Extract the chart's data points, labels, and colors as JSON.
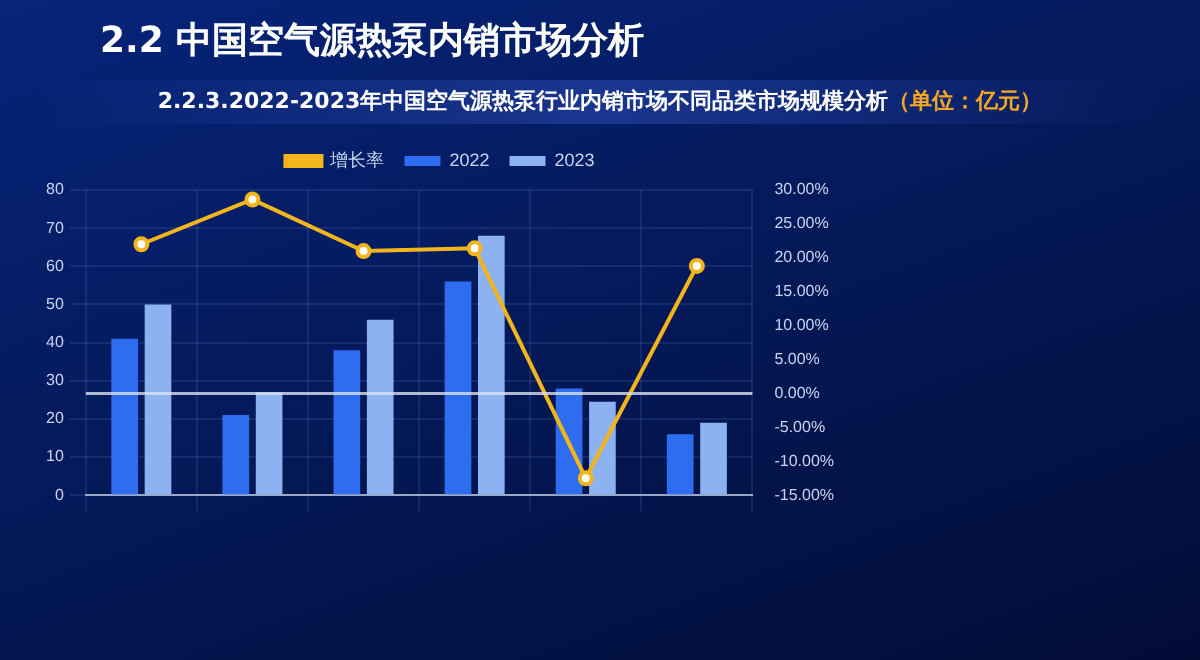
{
  "chart_data": {
    "type": "bar",
    "title": "2.2 中国空气源热泵内销市场分析",
    "subtitle": "2.2.3.2022-2023年中国空气源热泵行业内销市场不同品类市场规模分析",
    "annotations": [
      "（单位：亿元）"
    ],
    "categories": [
      null,
      null,
      null,
      null,
      null,
      null
    ],
    "series": [
      {
        "name": "2022",
        "color": "#2f6df0",
        "values": [
          41,
          21,
          38,
          56,
          28,
          16
        ]
      },
      {
        "name": "2023",
        "color": "#8cb2f2",
        "values": [
          50,
          27,
          46,
          68,
          24.5,
          19
        ]
      },
      {
        "name": "增长率",
        "type": "line",
        "axis": "y2",
        "color": "#f2b51c",
        "values": [
          22,
          28.6,
          21,
          21.4,
          -12.5,
          18.8
        ]
      }
    ],
    "ylim": [
      0,
      80
    ],
    "yticks": [
      0,
      10,
      20,
      30,
      40,
      50,
      60,
      70,
      80
    ],
    "y2lim": [
      -15,
      30
    ],
    "y2ticks": [
      {
        "value": 30,
        "label": "30.00%"
      },
      {
        "value": 25,
        "label": "25.00%"
      },
      {
        "value": 20,
        "label": "20.00%"
      },
      {
        "value": 15,
        "label": "15.00%"
      },
      {
        "value": 10,
        "label": "10.00%"
      },
      {
        "value": 5,
        "label": "5.00%"
      },
      {
        "value": 0,
        "label": "0.00%"
      },
      {
        "value": -5,
        "label": "-5.00%"
      },
      {
        "value": -10,
        "label": "-10.00%"
      },
      {
        "value": -15,
        "label": "-15.00%"
      }
    ],
    "grid": true,
    "legend": "top",
    "marker": "circle"
  }
}
